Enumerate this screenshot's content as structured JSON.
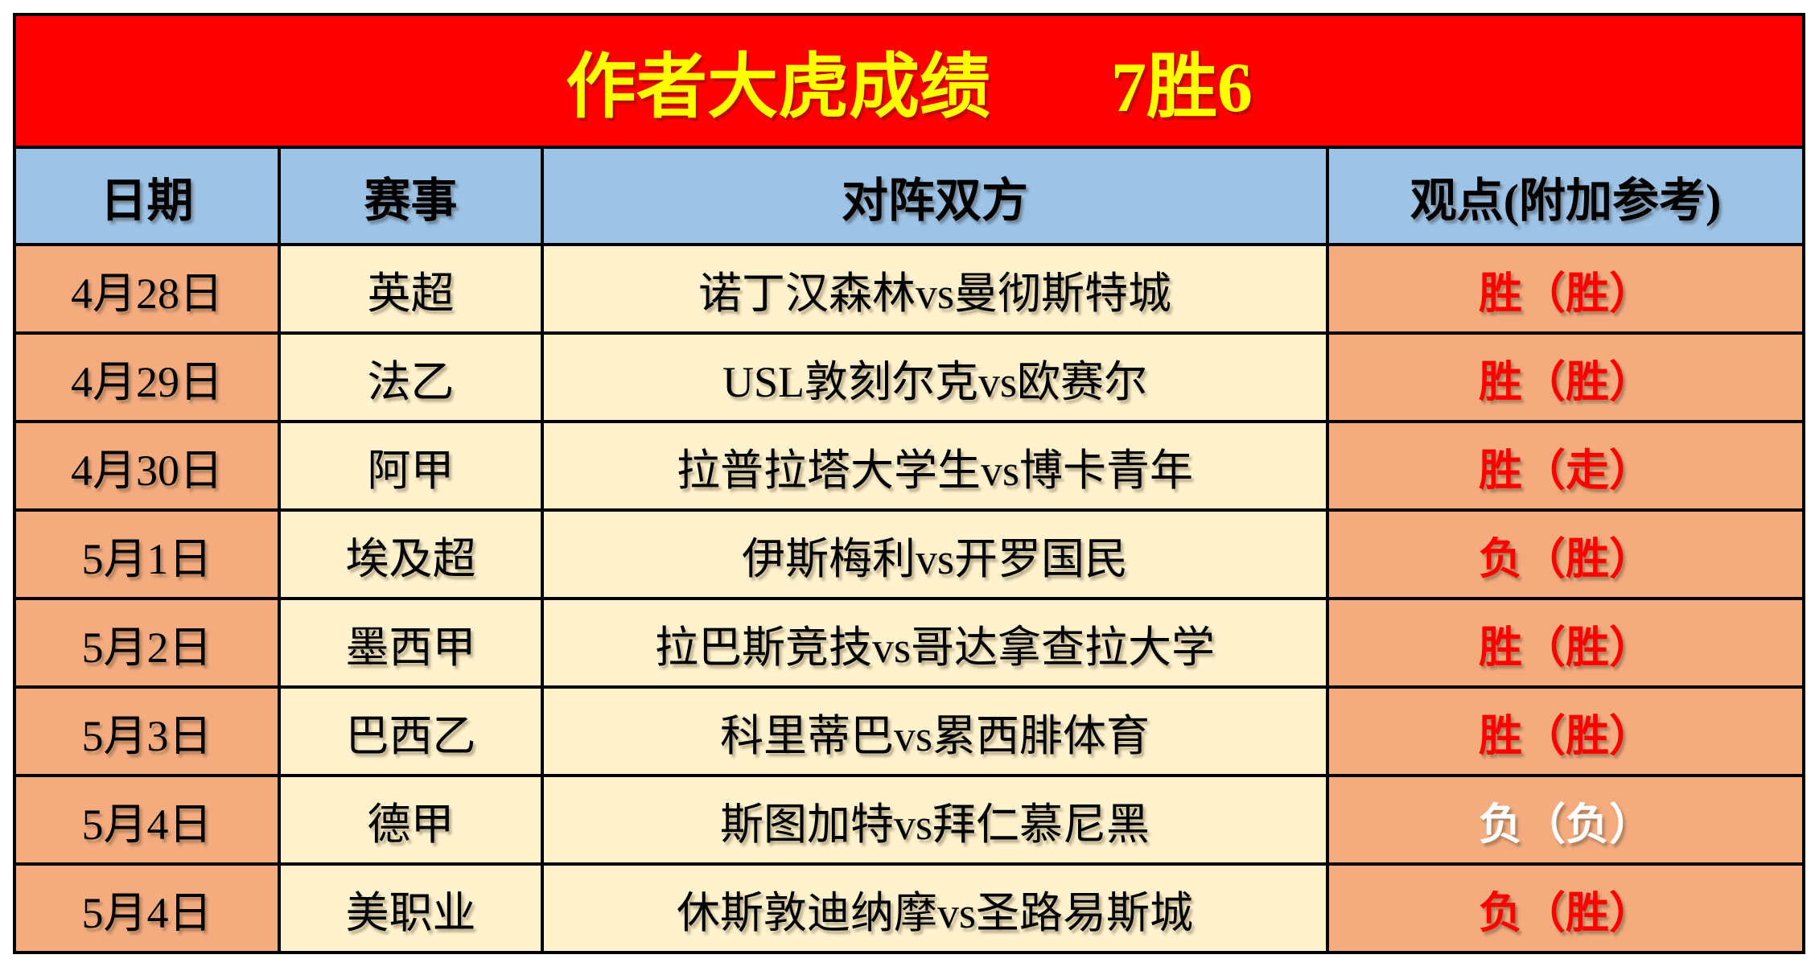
{
  "banner": {
    "title": "作者大虎成绩",
    "record": "7胜6"
  },
  "header": {
    "date": "日期",
    "league": "赛事",
    "match": "对阵双方",
    "view": "观点(附加参考)"
  },
  "rows": [
    {
      "date": "4月28日",
      "league": "英超",
      "match": "诺丁汉森林vs曼彻斯特城",
      "result": "胜（胜）",
      "result_color": "#FF0000"
    },
    {
      "date": "4月29日",
      "league": "法乙",
      "match": "USL敦刻尔克vs欧赛尔",
      "result": "胜（胜）",
      "result_color": "#FF0000"
    },
    {
      "date": "4月30日",
      "league": "阿甲",
      "match": "拉普拉塔大学生vs博卡青年",
      "result": "胜（走）",
      "result_color": "#FF0000"
    },
    {
      "date": "5月1日",
      "league": "埃及超",
      "match": "伊斯梅利vs开罗国民",
      "result": "负（胜）",
      "result_color": "#FF0000"
    },
    {
      "date": "5月2日",
      "league": "墨西甲",
      "match": "拉巴斯竞技vs哥达拿查拉大学",
      "result": "胜（胜）",
      "result_color": "#FF0000"
    },
    {
      "date": "5月3日",
      "league": "巴西乙",
      "match": "科里蒂巴vs累西腓体育",
      "result": "胜（胜）",
      "result_color": "#FF0000"
    },
    {
      "date": "5月4日",
      "league": "德甲",
      "match": "斯图加特vs拜仁慕尼黑",
      "result": "负（负）",
      "result_color": "#FFFFFF"
    },
    {
      "date": "5月4日",
      "league": "美职业",
      "match": "休斯敦迪纳摩vs圣路易斯城",
      "result": "负（胜）",
      "result_color": "#FF0000"
    }
  ],
  "colors": {
    "banner_bg": "#FF0000",
    "banner_text": "#FFFF00",
    "header_bg": "#9DC3E6",
    "date_col_bg": "#F4AC7E",
    "middle_col_bg": "#FFF2CC",
    "view_col_bg": "#F4AC7E",
    "border": "#000000",
    "result_win": "#FF0000",
    "result_hidden": "#FFFFFF"
  }
}
